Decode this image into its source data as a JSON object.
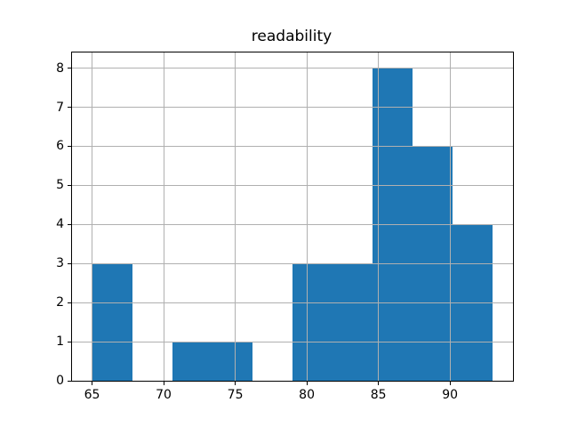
{
  "chart_data": {
    "type": "bar",
    "subtype": "histogram",
    "title": "readability",
    "xlabel": "",
    "ylabel": "",
    "bin_edges": [
      65.0,
      67.8,
      70.6,
      73.4,
      76.2,
      79.0,
      81.8,
      84.6,
      87.4,
      90.2,
      93.0
    ],
    "counts": [
      3,
      0,
      1,
      1,
      0,
      3,
      3,
      8,
      6,
      4
    ],
    "xticks": [
      "65",
      "70",
      "75",
      "80",
      "85",
      "90"
    ],
    "xtick_values": [
      65,
      70,
      75,
      80,
      85,
      90
    ],
    "yticks": [
      "0",
      "1",
      "2",
      "3",
      "4",
      "5",
      "6",
      "7",
      "8"
    ],
    "ytick_values": [
      0,
      1,
      2,
      3,
      4,
      5,
      6,
      7,
      8
    ],
    "xlim": [
      63.6,
      94.4
    ],
    "ylim": [
      0,
      8.4
    ],
    "grid": true,
    "grid_above_bars": true,
    "legend": "none",
    "bar_color": "#1f77b4",
    "grid_color": "#b0b0b0",
    "axis_color": "#000000",
    "background_color": "#ffffff"
  }
}
